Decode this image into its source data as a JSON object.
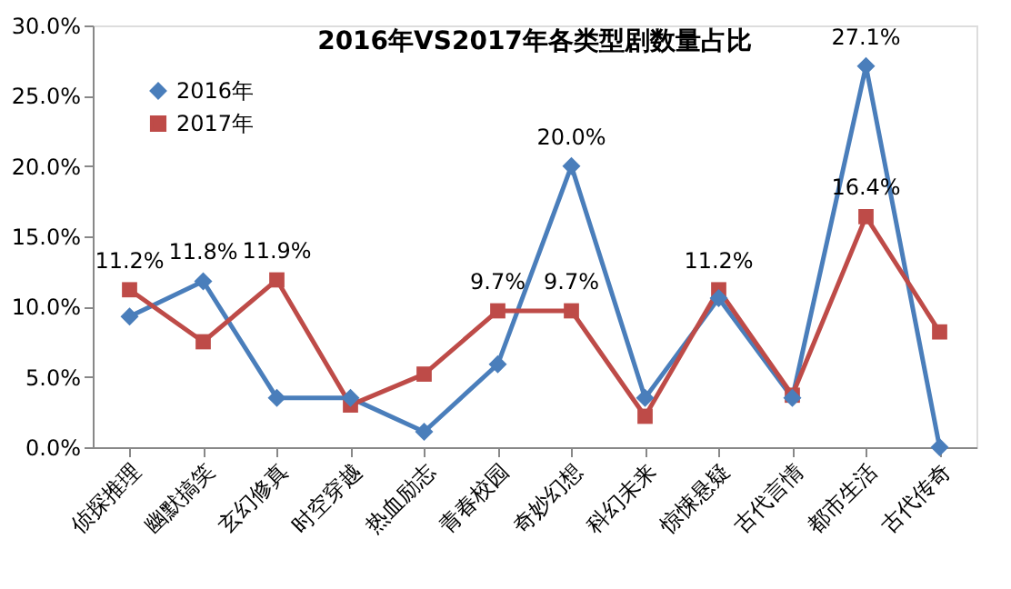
{
  "chart_data": {
    "type": "line",
    "title": "2016年VS2017年各类型剧数量占比",
    "categories": [
      "侦探推理",
      "幽默搞笑",
      "玄幻修真",
      "时空穿越",
      "热血励志",
      "青春校园",
      "奇妙幻想",
      "科幻未来",
      "惊悚悬疑",
      "古代言情",
      "都市生活",
      "古代传奇"
    ],
    "series": [
      {
        "name": "2016年",
        "color": "#4a7ebb",
        "marker": "diamond",
        "values": [
          9.3,
          11.8,
          3.5,
          3.5,
          1.1,
          5.9,
          20.0,
          3.5,
          10.6,
          3.5,
          27.1,
          0.0
        ],
        "value_labels": [
          null,
          "11.8%",
          null,
          null,
          null,
          null,
          "20.0%",
          null,
          null,
          null,
          "27.1%",
          null
        ]
      },
      {
        "name": "2017年",
        "color": "#be4b48",
        "marker": "square",
        "values": [
          11.2,
          7.5,
          11.9,
          3.0,
          5.2,
          9.7,
          9.7,
          2.2,
          11.2,
          3.7,
          16.4,
          8.2
        ],
        "value_labels": [
          "11.2%",
          null,
          "11.9%",
          null,
          null,
          "9.7%",
          "9.7%",
          null,
          "11.2%",
          null,
          "16.4%",
          null
        ]
      }
    ],
    "ylim": [
      0,
      30
    ],
    "yticks": [
      {
        "value": 0,
        "label": "0.0%"
      },
      {
        "value": 5,
        "label": "5.0%"
      },
      {
        "value": 10,
        "label": "10.0%"
      },
      {
        "value": 15,
        "label": "15.0%"
      },
      {
        "value": 20,
        "label": "20.0%"
      },
      {
        "value": 25,
        "label": "25.0%"
      },
      {
        "value": 30,
        "label": "30.0%"
      }
    ],
    "grid": false,
    "legend": "top left",
    "line_style": "solid"
  }
}
